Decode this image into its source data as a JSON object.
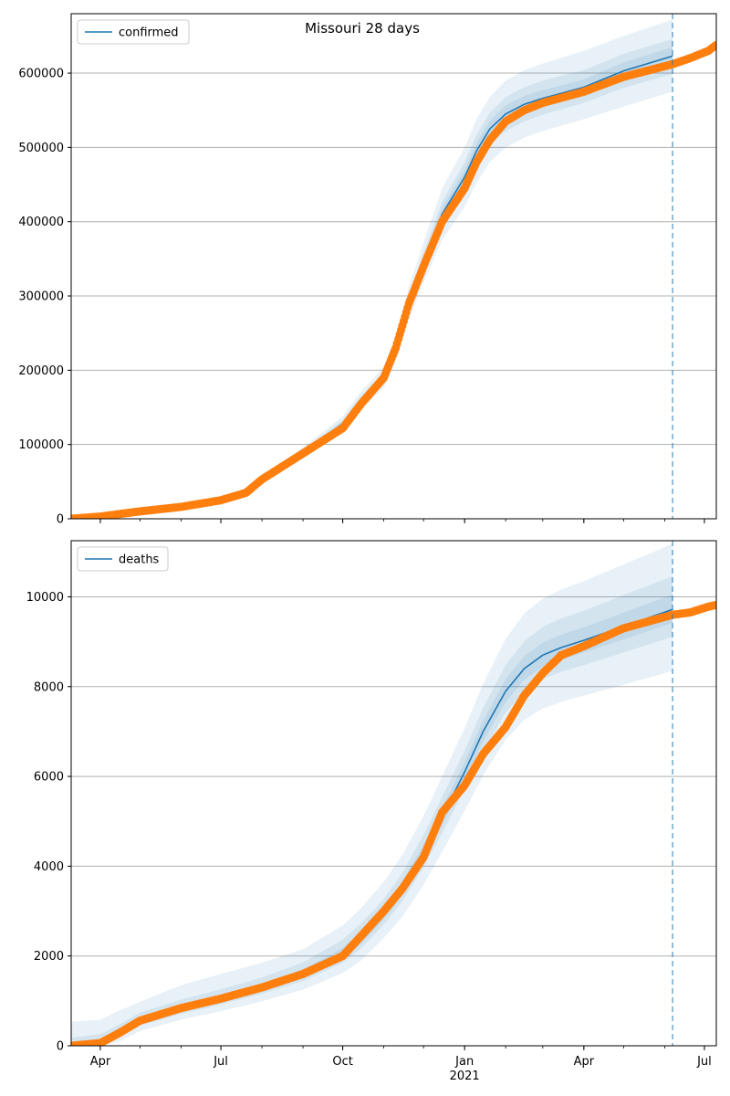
{
  "chart_data": [
    {
      "type": "line",
      "title": "Missouri 28 days",
      "legend": {
        "label": "confirmed",
        "placement": "top-left"
      },
      "grid": "horizontal",
      "ylim": [
        0,
        680000
      ],
      "yticks": [
        {
          "value": 0,
          "label": "0"
        },
        {
          "value": 100000,
          "label": "100000"
        },
        {
          "value": 200000,
          "label": "200000"
        },
        {
          "value": 300000,
          "label": "300000"
        },
        {
          "value": 400000,
          "label": "400000"
        },
        {
          "value": 500000,
          "label": "500000"
        },
        {
          "value": 600000,
          "label": "600000"
        }
      ],
      "forecast_start": "2021-06-07",
      "model_line": {
        "x": [
          "2020-03-10",
          "2020-04-01",
          "2020-05-01",
          "2020-06-01",
          "2020-07-01",
          "2020-07-20",
          "2020-08-01",
          "2020-09-01",
          "2020-10-01",
          "2020-10-15",
          "2020-11-01",
          "2020-11-10",
          "2020-11-20",
          "2020-12-01",
          "2020-12-15",
          "2021-01-01",
          "2021-01-10",
          "2021-01-20",
          "2021-02-01",
          "2021-02-15",
          "2021-03-01",
          "2021-04-01",
          "2021-05-01",
          "2021-06-07"
        ],
        "y": [
          0,
          3000,
          10000,
          16000,
          25000,
          36000,
          52000,
          90000,
          128000,
          160000,
          190000,
          230000,
          290000,
          345000,
          410000,
          460000,
          495000,
          525000,
          545000,
          558000,
          566000,
          581000,
          603000,
          623000
        ]
      },
      "observed": {
        "x": [
          "2020-03-10",
          "2020-04-01",
          "2020-05-01",
          "2020-06-01",
          "2020-07-01",
          "2020-07-20",
          "2020-08-01",
          "2020-09-01",
          "2020-10-01",
          "2020-10-15",
          "2020-11-01",
          "2020-11-10",
          "2020-11-20",
          "2020-12-01",
          "2020-12-15",
          "2021-01-01",
          "2021-01-10",
          "2021-01-20",
          "2021-02-01",
          "2021-02-15",
          "2021-03-01",
          "2021-04-01",
          "2021-05-01",
          "2021-06-07",
          "2021-06-20",
          "2021-07-04",
          "2021-07-10"
        ],
        "y": [
          0,
          3000,
          10000,
          16000,
          25000,
          35000,
          53000,
          88000,
          122000,
          155000,
          190000,
          230000,
          290000,
          340000,
          400000,
          445000,
          480000,
          510000,
          535000,
          550000,
          560000,
          575000,
          595000,
          612000,
          620000,
          630000,
          638000
        ]
      },
      "bands": [
        {
          "lower": [
            0,
            2800,
            9500,
            15200,
            23500,
            33500,
            49000,
            84000,
            118000,
            148000,
            176000,
            212000,
            268000,
            318000,
            375000,
            420000,
            452000,
            480000,
            500000,
            513000,
            522000,
            538000,
            555000,
            575000
          ],
          "upper": [
            0,
            3200,
            10500,
            16800,
            26500,
            38500,
            55000,
            96000,
            138000,
            172000,
            204000,
            248000,
            312000,
            372000,
            445000,
            500000,
            538000,
            568000,
            590000,
            604000,
            613000,
            630000,
            650000,
            672000
          ]
        },
        {
          "lower": [
            0,
            2900,
            9700,
            15500,
            24200,
            34800,
            50500,
            87000,
            123000,
            154000,
            183000,
            221000,
            279000,
            332000,
            393000,
            440000,
            473000,
            503000,
            522000,
            535000,
            544000,
            560000,
            580000,
            599000
          ],
          "upper": [
            0,
            3100,
            10300,
            16500,
            25800,
            37300,
            53500,
            93000,
            133000,
            166000,
            197000,
            239000,
            301000,
            358000,
            427000,
            480000,
            517000,
            547000,
            568000,
            581000,
            590000,
            604000,
            626000,
            646000
          ]
        },
        {
          "lower": [
            0,
            2950,
            9850,
            15700,
            24600,
            35400,
            51200,
            88500,
            125500,
            157000,
            186500,
            225500,
            284500,
            338500,
            401500,
            450000,
            484000,
            514000,
            533500,
            546500,
            555000,
            570500,
            591500,
            611000
          ],
          "upper": [
            0,
            3050,
            10150,
            16300,
            25400,
            36600,
            52800,
            91500,
            130500,
            163000,
            193500,
            234500,
            295500,
            351500,
            418500,
            470000,
            506000,
            536000,
            556500,
            569500,
            577000,
            591500,
            614500,
            635000
          ]
        }
      ]
    },
    {
      "type": "line",
      "legend": {
        "label": "deaths",
        "placement": "top-left"
      },
      "grid": "horizontal",
      "ylim": [
        0,
        11250
      ],
      "yticks": [
        {
          "value": 0,
          "label": "0"
        },
        {
          "value": 2000,
          "label": "2000"
        },
        {
          "value": 4000,
          "label": "4000"
        },
        {
          "value": 6000,
          "label": "6000"
        },
        {
          "value": 8000,
          "label": "8000"
        },
        {
          "value": 10000,
          "label": "10000"
        }
      ],
      "xlim": [
        "2020-03-10",
        "2021-07-10"
      ],
      "xticks": [
        {
          "value": "2020-04-01",
          "label": "Apr",
          "sub": ""
        },
        {
          "value": "2020-07-01",
          "label": "Jul",
          "sub": ""
        },
        {
          "value": "2020-10-01",
          "label": "Oct",
          "sub": ""
        },
        {
          "value": "2021-01-01",
          "label": "Jan",
          "sub": "2021"
        },
        {
          "value": "2021-04-01",
          "label": "Apr",
          "sub": ""
        },
        {
          "value": "2021-07-01",
          "label": "Jul",
          "sub": ""
        }
      ],
      "forecast_start": "2021-06-07",
      "model_line": {
        "x": [
          "2020-03-10",
          "2020-04-01",
          "2020-04-15",
          "2020-05-01",
          "2020-06-01",
          "2020-07-01",
          "2020-08-01",
          "2020-09-01",
          "2020-10-01",
          "2020-10-15",
          "2020-11-01",
          "2020-11-15",
          "2020-12-01",
          "2020-12-15",
          "2021-01-01",
          "2021-01-15",
          "2021-02-01",
          "2021-02-15",
          "2021-03-01",
          "2021-03-15",
          "2021-04-01",
          "2021-05-01",
          "2021-06-07"
        ],
        "y": [
          0,
          60,
          300,
          560,
          840,
          1050,
          1300,
          1600,
          2050,
          2400,
          2950,
          3500,
          4300,
          5100,
          6100,
          7000,
          7900,
          8400,
          8700,
          8870,
          9030,
          9340,
          9720
        ]
      },
      "observed": {
        "x": [
          "2020-03-10",
          "2020-04-01",
          "2020-04-15",
          "2020-05-01",
          "2020-06-01",
          "2020-07-01",
          "2020-08-01",
          "2020-09-01",
          "2020-10-01",
          "2020-10-15",
          "2020-11-01",
          "2020-11-15",
          "2020-12-01",
          "2020-12-15",
          "2021-01-01",
          "2021-01-15",
          "2021-02-01",
          "2021-02-15",
          "2021-03-01",
          "2021-03-15",
          "2021-04-01",
          "2021-05-01",
          "2021-06-07",
          "2021-06-20",
          "2021-07-04",
          "2021-07-10"
        ],
        "y": [
          0,
          60,
          280,
          560,
          840,
          1050,
          1300,
          1600,
          2000,
          2450,
          3000,
          3500,
          4200,
          5200,
          5800,
          6500,
          7100,
          7800,
          8300,
          8700,
          8900,
          9300,
          9600,
          9650,
          9780,
          9820
        ]
      },
      "bands": [
        {
          "lower": [
            0,
            0,
            90,
            330,
            580,
            770,
            990,
            1250,
            1620,
            1900,
            2400,
            2870,
            3580,
            4320,
            5230,
            6030,
            6820,
            7260,
            7510,
            7660,
            7800,
            8040,
            8350
          ],
          "upper": [
            530,
            580,
            780,
            980,
            1350,
            1600,
            1850,
            2150,
            2680,
            3070,
            3650,
            4250,
            5120,
            6000,
            7080,
            8060,
            9070,
            9630,
            9960,
            10160,
            10350,
            10720,
            11180
          ]
        },
        {
          "lower": [
            0,
            20,
            190,
            450,
            710,
            920,
            1160,
            1440,
            1850,
            2170,
            2700,
            3220,
            3980,
            4740,
            5710,
            6560,
            7420,
            7900,
            8170,
            8330,
            8480,
            8760,
            9110
          ],
          "upper": [
            180,
            260,
            470,
            740,
            1030,
            1260,
            1520,
            1860,
            2360,
            2730,
            3270,
            3850,
            4700,
            5540,
            6580,
            7530,
            8490,
            9010,
            9330,
            9520,
            9690,
            10040,
            10460
          ]
        },
        {
          "lower": [
            0,
            40,
            240,
            500,
            770,
            980,
            1220,
            1510,
            1940,
            2280,
            2820,
            3350,
            4130,
            4920,
            5900,
            6780,
            7660,
            8150,
            8440,
            8600,
            8760,
            9050,
            9420
          ],
          "upper": [
            60,
            130,
            370,
            630,
            920,
            1130,
            1380,
            1700,
            2180,
            2540,
            3100,
            3660,
            4480,
            5300,
            6320,
            7240,
            8170,
            8680,
            8980,
            9160,
            9320,
            9650,
            10050
          ]
        }
      ]
    }
  ],
  "colors": {
    "model": "#1f77b4",
    "observed": "#ff7f0e",
    "band": "#1f77b4",
    "grid": "#b0b0b0",
    "forecast_line": "#1f77b4"
  }
}
